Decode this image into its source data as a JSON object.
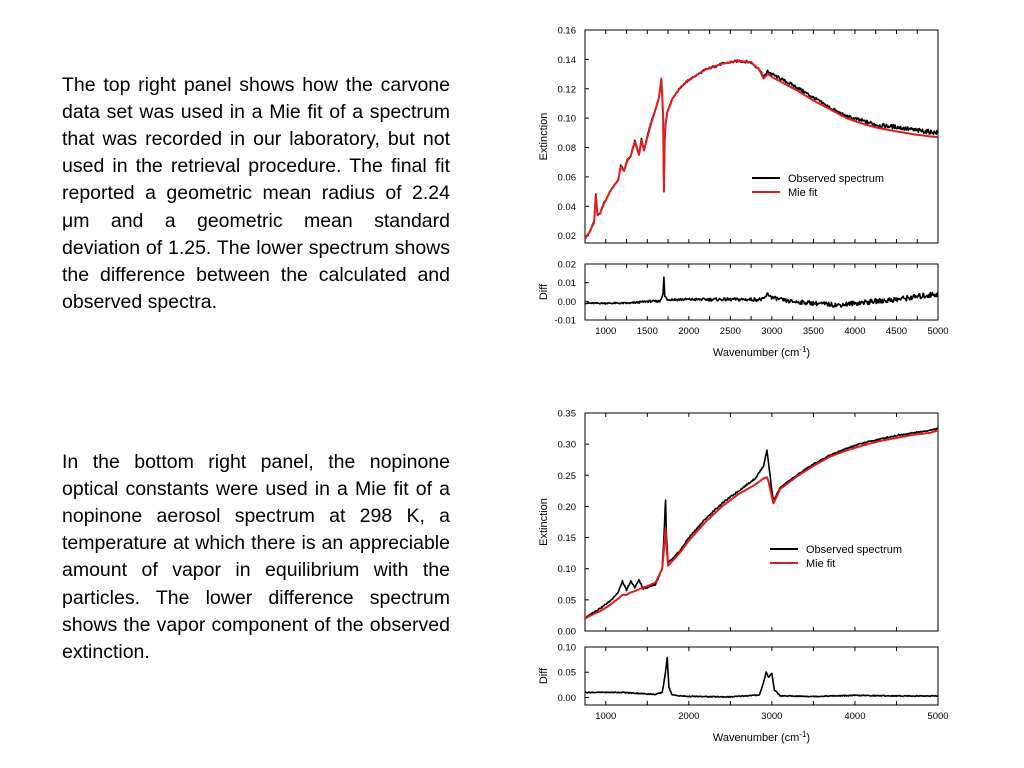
{
  "paragraphs": [
    "The top right panel shows how the carvone data set was used in a Mie fit of a spectrum that was recorded in our laboratory, but not used in the retrieval procedure.  The final fit reported a geometric mean radius of 2.24 μm and a geometric mean standard deviation of 1.25.  The lower spectrum shows the difference between the calculated and observed spectra.",
    "In the bottom right panel, the nopinone optical constants were used in a Mie fit of a nopinone aerosol spectrum at 298 K, a temperature at which there is an appreciable amount of vapor in equilibrium with the particles.  The lower difference spectrum shows the vapor component of the observed extinction."
  ],
  "chart_data": [
    {
      "type": "line",
      "ylabel": "Extinction",
      "xlim": [
        750,
        5000
      ],
      "ylim": [
        0.015,
        0.16
      ],
      "yticks": [
        "0.02",
        "0.04",
        "0.06",
        "0.08",
        "0.10",
        "0.12",
        "0.14",
        "0.16"
      ],
      "legend_position": "center-right",
      "series": [
        {
          "name": "Observed spectrum",
          "color": "#000000",
          "x": [
            750,
            800,
            860,
            880,
            900,
            930,
            980,
            1000,
            1050,
            1100,
            1150,
            1180,
            1220,
            1260,
            1300,
            1350,
            1400,
            1430,
            1460,
            1500,
            1550,
            1600,
            1640,
            1670,
            1690,
            1700,
            1710,
            1720,
            1740,
            1800,
            1900,
            2000,
            2200,
            2400,
            2600,
            2750,
            2850,
            2900,
            2950,
            3000,
            3100,
            3300,
            3500,
            3700,
            3900,
            4100,
            4300,
            4500,
            4700,
            4850,
            5000
          ],
          "y": [
            0.018,
            0.022,
            0.03,
            0.048,
            0.034,
            0.035,
            0.043,
            0.044,
            0.05,
            0.054,
            0.058,
            0.068,
            0.064,
            0.072,
            0.074,
            0.085,
            0.075,
            0.086,
            0.078,
            0.088,
            0.098,
            0.106,
            0.114,
            0.126,
            0.102,
            0.052,
            0.085,
            0.096,
            0.104,
            0.113,
            0.121,
            0.126,
            0.133,
            0.137,
            0.139,
            0.138,
            0.133,
            0.128,
            0.132,
            0.13,
            0.127,
            0.121,
            0.114,
            0.107,
            0.101,
            0.098,
            0.095,
            0.094,
            0.092,
            0.091,
            0.09
          ]
        },
        {
          "name": "Mie fit",
          "color": "#e11b1b",
          "x": [
            750,
            800,
            860,
            880,
            900,
            930,
            980,
            1000,
            1050,
            1100,
            1150,
            1180,
            1220,
            1260,
            1300,
            1350,
            1400,
            1430,
            1460,
            1500,
            1550,
            1600,
            1640,
            1670,
            1690,
            1700,
            1710,
            1720,
            1740,
            1800,
            1900,
            2000,
            2200,
            2400,
            2600,
            2750,
            2850,
            2900,
            2950,
            3000,
            3100,
            3300,
            3500,
            3700,
            3900,
            4100,
            4300,
            4500,
            4700,
            4850,
            5000
          ],
          "y": [
            0.018,
            0.022,
            0.029,
            0.047,
            0.034,
            0.035,
            0.042,
            0.044,
            0.05,
            0.054,
            0.058,
            0.067,
            0.064,
            0.071,
            0.074,
            0.084,
            0.075,
            0.085,
            0.078,
            0.087,
            0.097,
            0.106,
            0.114,
            0.127,
            0.102,
            0.05,
            0.085,
            0.096,
            0.104,
            0.113,
            0.121,
            0.126,
            0.133,
            0.137,
            0.139,
            0.138,
            0.133,
            0.127,
            0.13,
            0.128,
            0.125,
            0.119,
            0.112,
            0.106,
            0.1,
            0.096,
            0.093,
            0.091,
            0.089,
            0.088,
            0.087
          ]
        }
      ]
    },
    {
      "type": "line",
      "ylabel": "Diff",
      "xlabel": "Wavenumber (cm-1)",
      "xlim": [
        750,
        5000
      ],
      "ylim": [
        -0.01,
        0.02
      ],
      "yticks": [
        "-0.01",
        "0.00",
        "0.01",
        "0.02"
      ],
      "xticks": [
        "1000",
        "1500",
        "2000",
        "2500",
        "3000",
        "3500",
        "4000",
        "4500",
        "5000"
      ],
      "series": [
        {
          "name": "",
          "color": "#000000",
          "x": [
            750,
            1000,
            1300,
            1500,
            1650,
            1690,
            1700,
            1710,
            1740,
            1800,
            2000,
            2500,
            2900,
            2950,
            3000,
            3200,
            3500,
            3800,
            4000,
            4500,
            5000
          ],
          "y": [
            -0.001,
            -0.001,
            -0.001,
            0.0,
            0.0,
            0.004,
            0.013,
            0.003,
            0.001,
            0.001,
            0.001,
            0.001,
            0.001,
            0.004,
            0.002,
            0.0,
            -0.001,
            -0.002,
            -0.001,
            0.001,
            0.004
          ]
        }
      ]
    },
    {
      "type": "line",
      "ylabel": "Extinction",
      "xlim": [
        750,
        5000
      ],
      "ylim": [
        0.0,
        0.35
      ],
      "yticks": [
        "0.00",
        "0.05",
        "0.10",
        "0.15",
        "0.20",
        "0.25",
        "0.30",
        "0.35"
      ],
      "legend_position": "center-right",
      "series": [
        {
          "name": "Observed spectrum",
          "color": "#000000",
          "x": [
            750,
            850,
            950,
            1050,
            1150,
            1200,
            1250,
            1300,
            1350,
            1400,
            1450,
            1500,
            1600,
            1680,
            1700,
            1720,
            1730,
            1750,
            1800,
            1900,
            2000,
            2200,
            2400,
            2600,
            2800,
            2900,
            2940,
            2960,
            3000,
            3020,
            3100,
            3300,
            3500,
            3700,
            3900,
            4100,
            4300,
            4500,
            4700,
            4900,
            5000
          ],
          "y": [
            0.02,
            0.03,
            0.038,
            0.048,
            0.062,
            0.08,
            0.065,
            0.08,
            0.07,
            0.082,
            0.068,
            0.07,
            0.075,
            0.1,
            0.15,
            0.21,
            0.155,
            0.11,
            0.115,
            0.13,
            0.15,
            0.18,
            0.205,
            0.225,
            0.245,
            0.265,
            0.29,
            0.27,
            0.225,
            0.21,
            0.23,
            0.25,
            0.268,
            0.282,
            0.293,
            0.302,
            0.308,
            0.314,
            0.318,
            0.322,
            0.325
          ]
        },
        {
          "name": "Mie fit",
          "color": "#e11b1b",
          "x": [
            750,
            850,
            950,
            1050,
            1150,
            1200,
            1250,
            1300,
            1350,
            1400,
            1450,
            1500,
            1600,
            1680,
            1700,
            1720,
            1730,
            1750,
            1800,
            1900,
            2000,
            2200,
            2400,
            2600,
            2800,
            2900,
            2940,
            2960,
            3000,
            3020,
            3100,
            3300,
            3500,
            3700,
            3900,
            4100,
            4300,
            4500,
            4700,
            4900,
            5000
          ],
          "y": [
            0.02,
            0.027,
            0.033,
            0.042,
            0.052,
            0.058,
            0.058,
            0.062,
            0.064,
            0.067,
            0.07,
            0.072,
            0.078,
            0.1,
            0.13,
            0.165,
            0.14,
            0.105,
            0.112,
            0.127,
            0.145,
            0.175,
            0.2,
            0.22,
            0.235,
            0.245,
            0.247,
            0.24,
            0.215,
            0.205,
            0.228,
            0.248,
            0.265,
            0.28,
            0.29,
            0.298,
            0.305,
            0.31,
            0.315,
            0.318,
            0.322
          ]
        }
      ]
    },
    {
      "type": "line",
      "ylabel": "Diff",
      "xlabel": "Wavenumber (cm-1)",
      "xlim": [
        750,
        5000
      ],
      "ylim": [
        -0.015,
        0.1
      ],
      "yticks": [
        "0.00",
        "0.05",
        "0.10"
      ],
      "xticks": [
        "1000",
        "2000",
        "3000",
        "4000",
        "5000"
      ],
      "series": [
        {
          "name": "",
          "color": "#000000",
          "x": [
            750,
            1000,
            1200,
            1400,
            1600,
            1680,
            1720,
            1740,
            1760,
            1800,
            1900,
            2000,
            2500,
            2850,
            2900,
            2930,
            2960,
            3000,
            3030,
            3100,
            3500,
            4000,
            4500,
            5000
          ],
          "y": [
            0.01,
            0.01,
            0.01,
            0.008,
            0.006,
            0.01,
            0.05,
            0.08,
            0.02,
            0.005,
            0.003,
            0.002,
            0.001,
            0.005,
            0.03,
            0.05,
            0.04,
            0.048,
            0.015,
            0.003,
            0.002,
            0.004,
            0.003,
            0.003
          ]
        }
      ]
    }
  ]
}
